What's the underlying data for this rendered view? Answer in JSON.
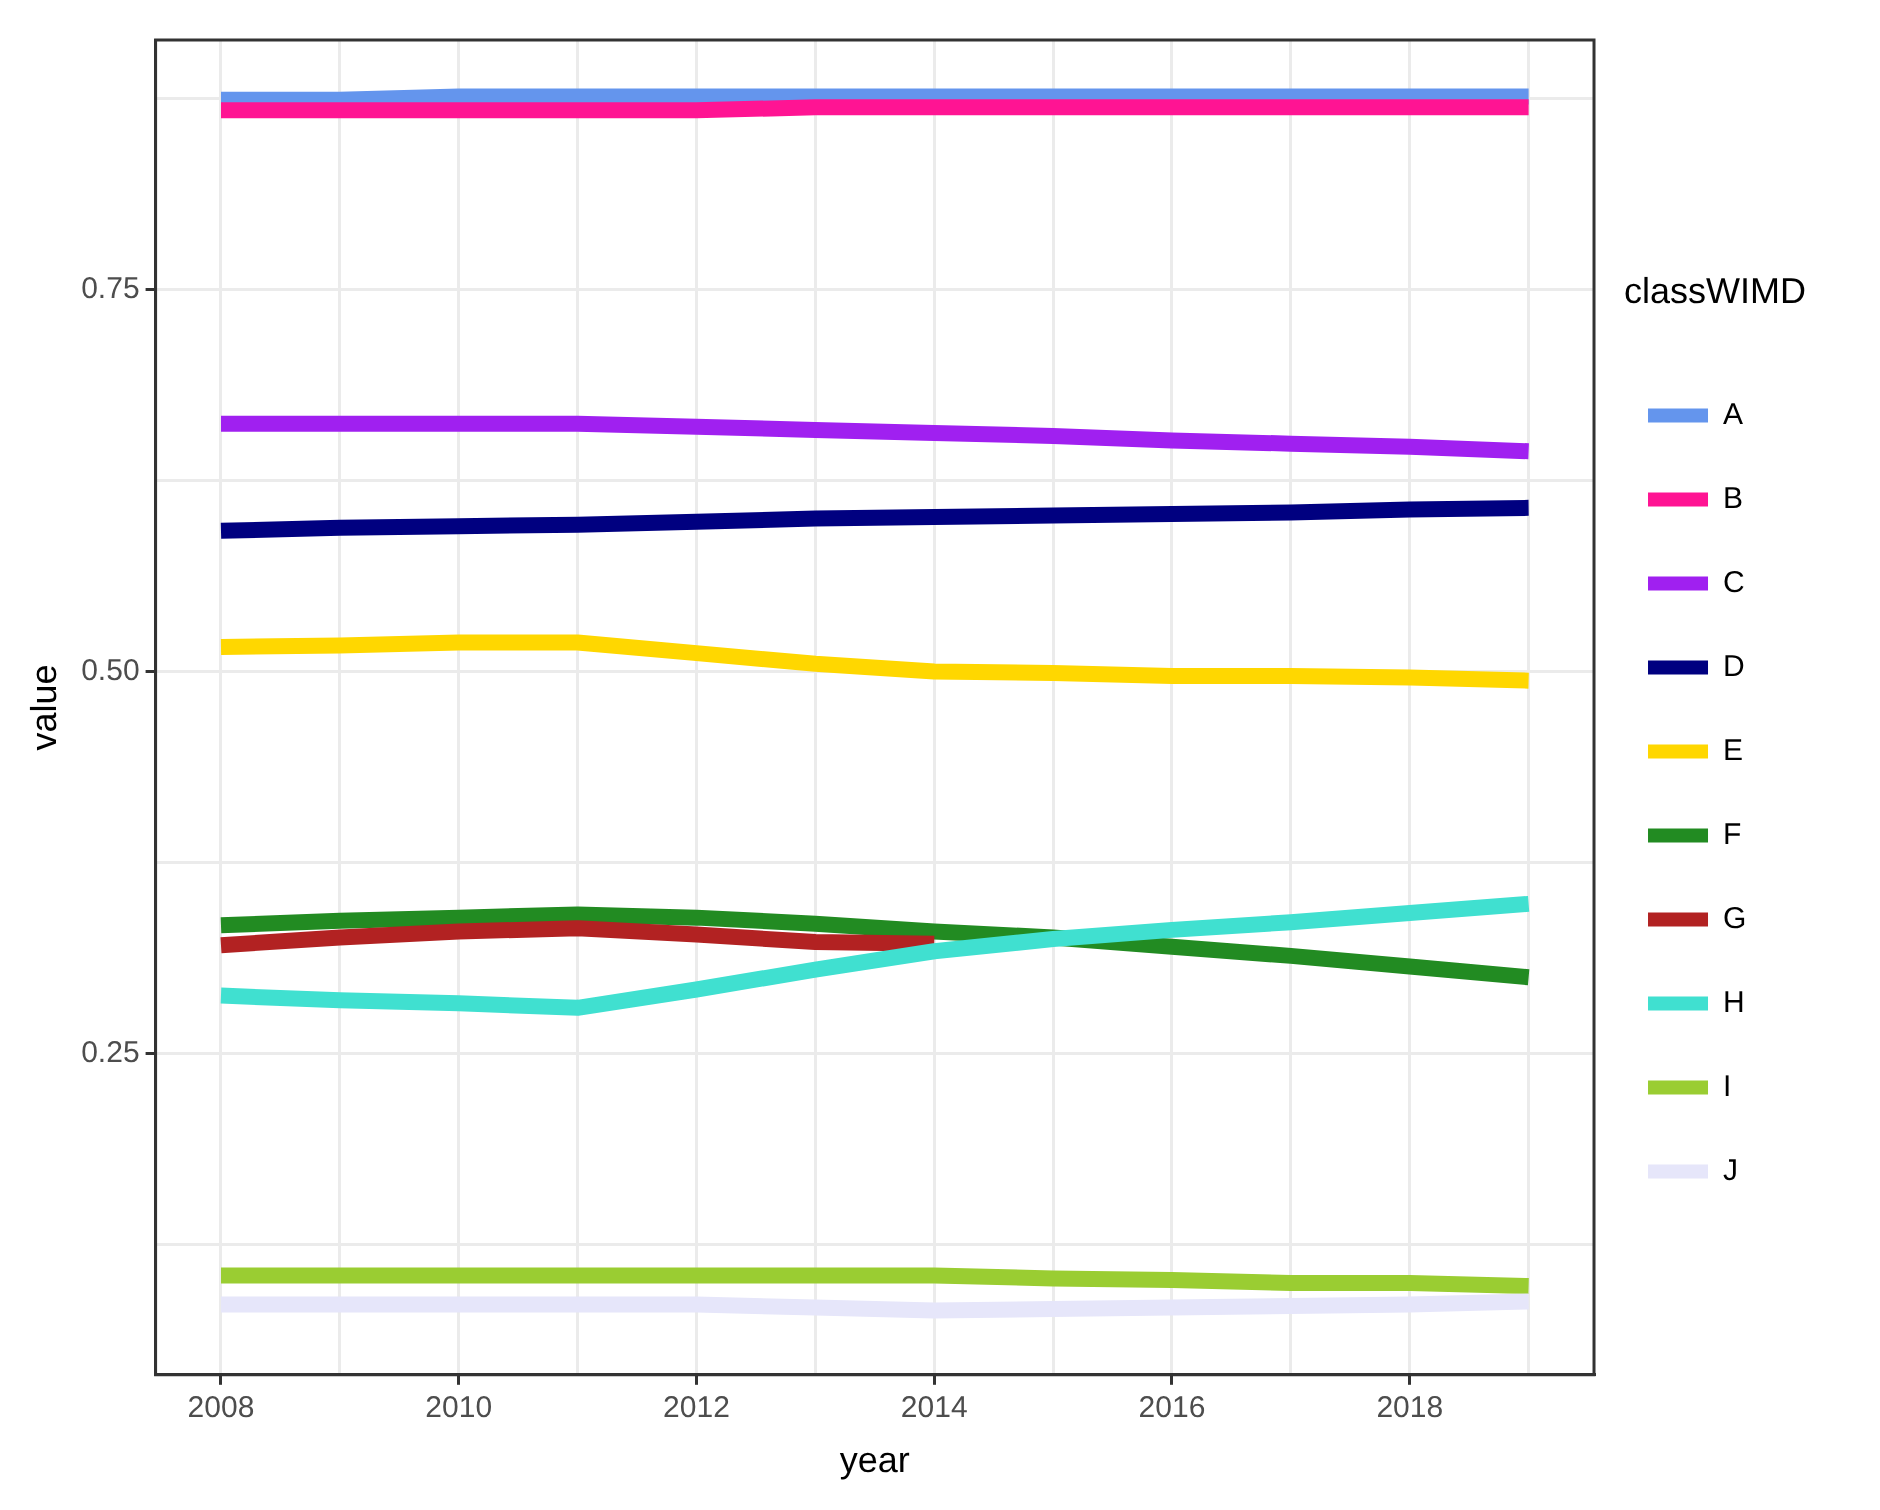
{
  "chart_data": {
    "type": "line",
    "xlabel": "year",
    "ylabel": "value",
    "legend_title": "classWIMD",
    "legend": "right",
    "grid": true,
    "marker": "none",
    "line_style": "solid",
    "x": [
      2008,
      2009,
      2010,
      2011,
      2012,
      2013,
      2014,
      2015,
      2016,
      2017,
      2018,
      2019
    ],
    "xlim": [
      2007.45,
      2019.55
    ],
    "xticks": [
      2008,
      {
        "value": 2009,
        "label": null
      },
      2010,
      {
        "value": 2011,
        "label": null
      },
      2012,
      {
        "value": 2013,
        "label": null
      },
      2014,
      {
        "value": 2015,
        "label": null
      },
      2016,
      {
        "value": 2017,
        "label": null
      },
      2018,
      {
        "value": 2019,
        "label": null
      }
    ],
    "ylim": [
      0.04,
      0.913
    ],
    "yticks": [
      {
        "value": 0.125,
        "label": null
      },
      0.25,
      {
        "value": 0.375,
        "label": null
      },
      {
        "value": 0.5,
        "label": "0.50"
      },
      {
        "value": 0.625,
        "label": null
      },
      0.75,
      {
        "value": 0.875,
        "label": null
      }
    ],
    "series": [
      {
        "name": "A",
        "color": "#6495ed",
        "values": [
          0.874,
          0.874,
          0.876,
          0.876,
          0.876,
          0.876,
          0.876,
          0.876,
          0.876,
          0.876,
          0.876,
          0.876
        ]
      },
      {
        "name": "B",
        "color": "#ff1493",
        "values": [
          0.867,
          0.867,
          0.867,
          0.867,
          0.867,
          0.869,
          0.869,
          0.869,
          0.869,
          0.869,
          0.869,
          0.869
        ]
      },
      {
        "name": "C",
        "color": "#a020f0",
        "values": [
          0.662,
          0.662,
          0.662,
          0.662,
          0.66,
          0.658,
          0.656,
          0.654,
          0.651,
          0.649,
          0.647,
          0.644
        ]
      },
      {
        "name": "D",
        "color": "#000080",
        "values": [
          0.592,
          0.594,
          0.595,
          0.596,
          0.598,
          0.6,
          0.601,
          0.602,
          0.603,
          0.604,
          0.606,
          0.607
        ]
      },
      {
        "name": "E",
        "color": "#ffd700",
        "values": [
          0.516,
          0.517,
          0.519,
          0.519,
          0.512,
          0.505,
          0.5,
          0.499,
          0.497,
          0.497,
          0.496,
          0.494
        ]
      },
      {
        "name": "F",
        "color": "#228b22",
        "values": [
          0.334,
          0.337,
          0.339,
          0.341,
          0.339,
          0.335,
          0.33,
          0.326,
          0.32,
          0.314,
          0.307,
          0.3
        ]
      },
      {
        "name": "G",
        "color": "#b22222",
        "values": [
          0.321,
          0.326,
          0.33,
          0.332,
          0.328,
          0.323,
          0.322,
          null,
          null,
          null,
          null,
          null
        ]
      },
      {
        "name": "H",
        "color": "#40e0d0",
        "values": [
          0.288,
          0.285,
          0.283,
          0.28,
          0.292,
          0.305,
          0.317,
          0.325,
          0.331,
          0.336,
          0.342,
          0.348
        ]
      },
      {
        "name": "I",
        "color": "#9acd32",
        "values": [
          0.105,
          0.105,
          0.105,
          0.105,
          0.105,
          0.105,
          0.105,
          0.103,
          0.102,
          0.1,
          0.1,
          0.098
        ]
      },
      {
        "name": "J",
        "color": "#e6e6fa",
        "values": [
          0.086,
          0.086,
          0.086,
          0.086,
          0.086,
          0.084,
          0.082,
          0.083,
          0.084,
          0.085,
          0.086,
          0.088
        ]
      }
    ]
  }
}
